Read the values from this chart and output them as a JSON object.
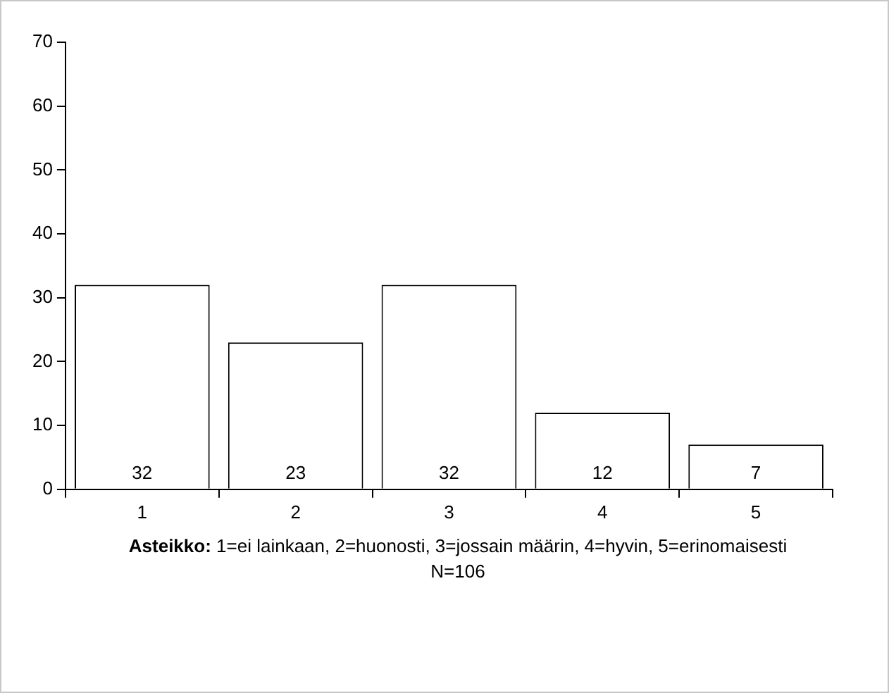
{
  "chart_data": {
    "type": "bar",
    "categories": [
      "1",
      "2",
      "3",
      "4",
      "5"
    ],
    "values": [
      32,
      23,
      32,
      12,
      7
    ],
    "color": "#ffffff",
    "ylim": [
      0,
      70
    ],
    "yticks": [
      0,
      10,
      20,
      30,
      40,
      50,
      60,
      70
    ],
    "grid": false,
    "legend": false,
    "data_labels": true,
    "xlabel": "Asteikko: 1=ei lainkaan, 2=huonosti, 3=jossain määrin, 4=hyvin, 5=erinomaisesti",
    "annotations": [
      "N=106"
    ]
  }
}
